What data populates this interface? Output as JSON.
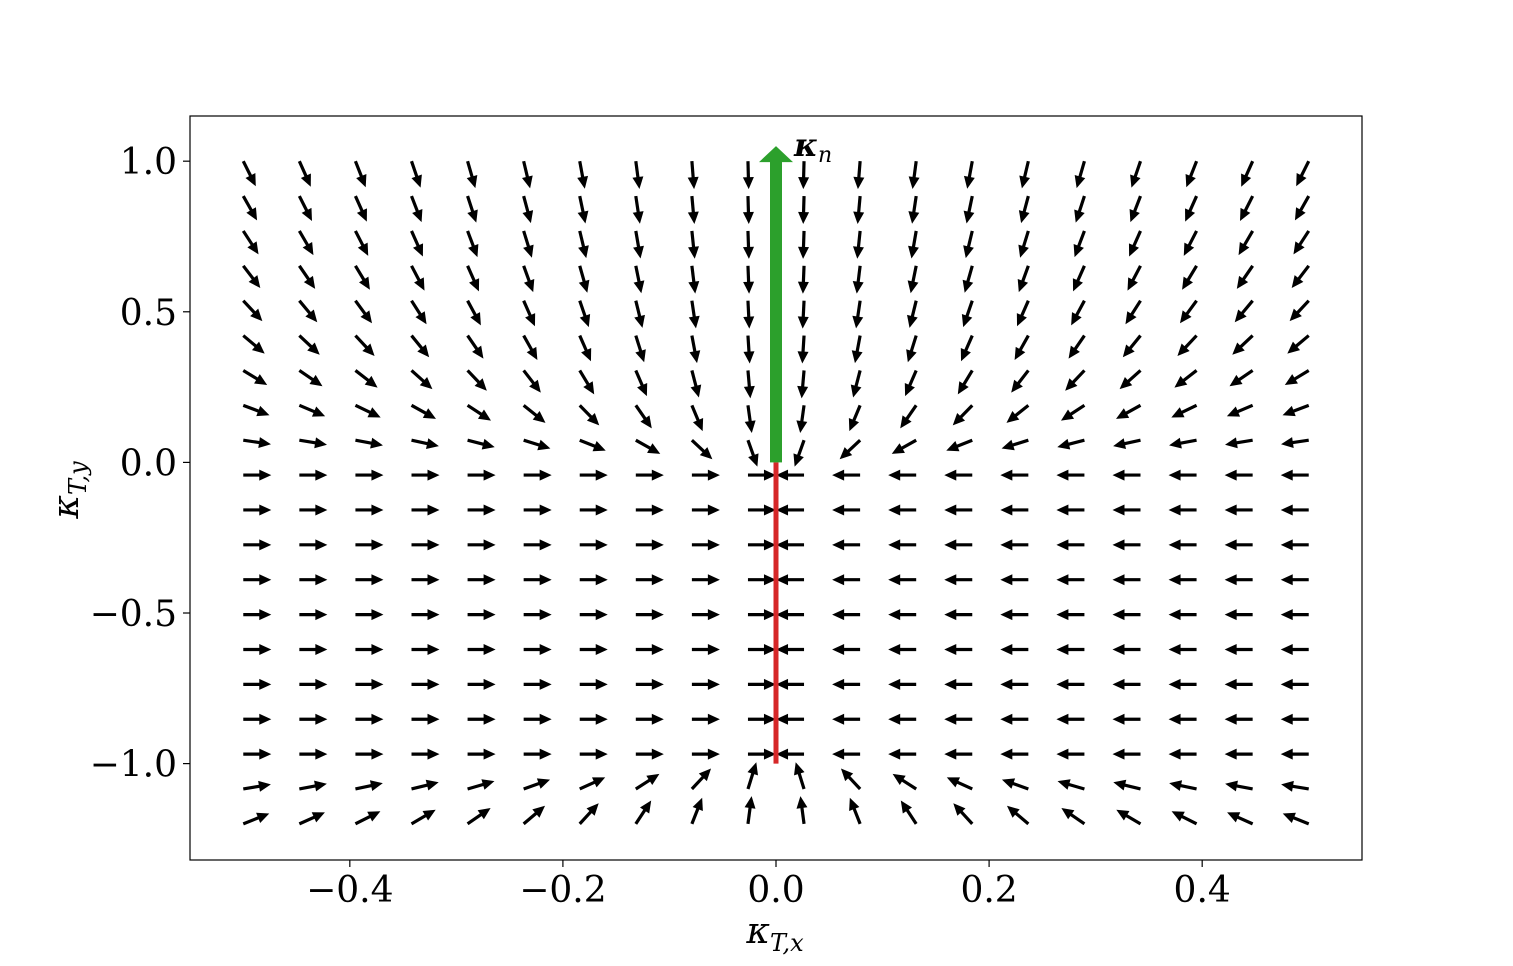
{
  "chart_data": {
    "type": "quiver",
    "title": "",
    "xlabel": {
      "base": "κ",
      "sub": "T,x"
    },
    "ylabel": {
      "base": "κ",
      "sub": "T,y"
    },
    "xlim": [
      -0.55,
      0.55
    ],
    "ylim": [
      -1.32,
      1.15
    ],
    "xticks": [
      -0.4,
      -0.2,
      0.0,
      0.2,
      0.4
    ],
    "xtick_labels": [
      "−0.4",
      "−0.2",
      "0.0",
      "0.2",
      "0.4"
    ],
    "yticks": [
      -1.0,
      -0.5,
      0.0,
      0.5,
      1.0
    ],
    "ytick_labels": [
      "−1.0",
      "−0.5",
      "0.0",
      "0.5",
      "1.0"
    ],
    "grid": false,
    "field": {
      "x_range": [
        -0.5,
        0.5
      ],
      "x_count": 20,
      "y_range": [
        -1.2,
        1.0
      ],
      "y_count": 20,
      "description_of_field": "unit arrows pointing toward the segment x=0, y in [-1, 0]",
      "segment_x": 0.0,
      "segment_y": [
        -1.0,
        0.0
      ],
      "color": "#000000"
    },
    "red_segment": {
      "x": [
        0.0,
        0.0
      ],
      "y": [
        -1.0,
        0.0
      ],
      "color": "#d62728"
    },
    "green_arrow": {
      "x": 0.0,
      "y_start": 0.0,
      "y_end": 1.05,
      "color": "#2ca02c",
      "label": {
        "base": "κ",
        "sub": "n"
      }
    }
  }
}
